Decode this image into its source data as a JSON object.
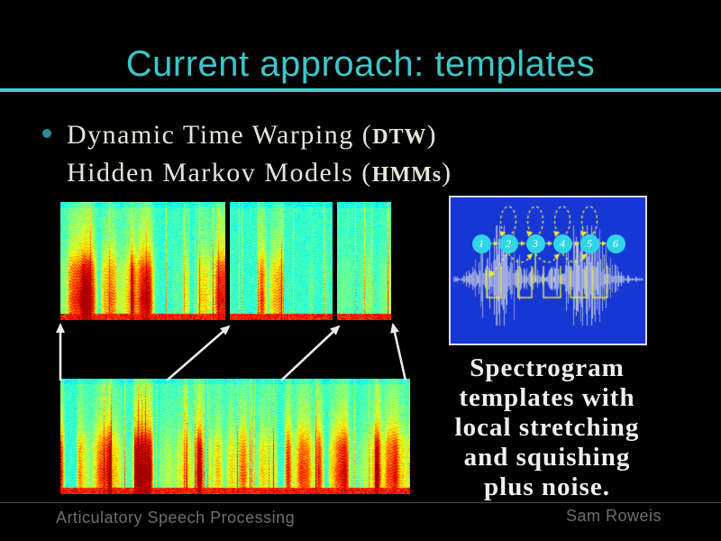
{
  "slide": {
    "title": "Current approach: templates",
    "bullet": {
      "line1_pre": "Dynamic Time Warping (",
      "line1_acro": "DTW",
      "line1_post": ")",
      "line2_pre": "Hidden Markov Models (",
      "line2_acro": "HMMs",
      "line2_post": ")"
    },
    "caption_lines": [
      "Spectrogram",
      "templates with",
      "local stretching",
      "and squishing",
      "plus noise."
    ],
    "footer": {
      "left": "Articulatory Speech Processing",
      "right": "Sam Roweis"
    },
    "hmm_states": [
      "1",
      "2",
      "3",
      "4",
      "5",
      "6"
    ],
    "colors": {
      "title": "#3cc6c8",
      "rule": "#3ecfcf",
      "bullet_dot": "#2b8e94",
      "body_text": "#e7e4da",
      "caption_text": "#efefef",
      "footer_text": "#6e6e6e",
      "footer_line": "#4d4d4d",
      "hmm_bg": "#1737d4",
      "hmm_border": "#dcdce8",
      "state_fill": "#2ed7e8",
      "state_text": "#ffffff",
      "hmm_yellow": "#e8ea3c",
      "waveform": "#c9cee4",
      "arrow": "#e9e9e9"
    }
  }
}
